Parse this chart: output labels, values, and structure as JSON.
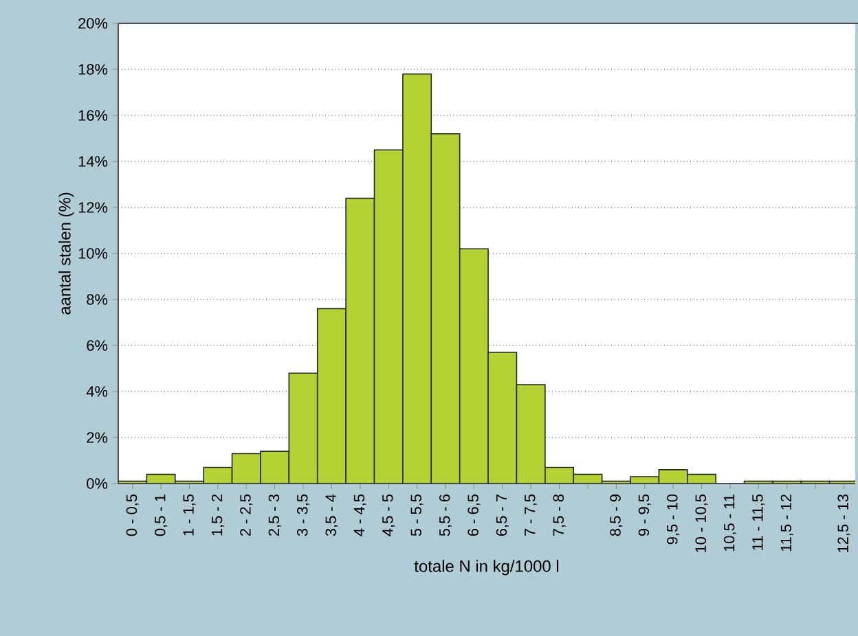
{
  "chart_data": {
    "type": "bar",
    "xlabel": "totale N in kg/1000 l",
    "ylabel": "aantal stalen (%)",
    "categories": [
      "0 - 0,5",
      "0,5 - 1",
      "1 - 1,5",
      "1,5 - 2",
      "2 - 2,5",
      "2,5 - 3",
      "3 - 3,5",
      "3,5 - 4",
      "4 - 4,5",
      "4,5 - 5",
      "5 - 5,5",
      "5,5 - 6",
      "6 - 6,5",
      "6,5 - 7",
      "7 - 7,5",
      "7,5 - 8",
      null,
      "8,5 - 9",
      "9 - 9,5",
      "9,5 - 10",
      "10 - 10,5",
      "10,5 - 11",
      "11 - 11,5",
      "11,5 - 12",
      null,
      "12,5 - 13"
    ],
    "values": [
      0.1,
      0.4,
      0.1,
      0.7,
      1.3,
      1.4,
      4.8,
      7.6,
      12.4,
      14.5,
      17.8,
      15.2,
      10.2,
      5.7,
      4.3,
      0.7,
      0.4,
      0.1,
      0.3,
      0.6,
      0.4,
      null,
      0.1,
      0.1,
      0.1,
      0.1
    ],
    "color": "#b3d334",
    "ylim": [
      0,
      20
    ],
    "yticks": [
      {
        "value": 0,
        "label": "0%"
      },
      {
        "value": 2,
        "label": "2%"
      },
      {
        "value": 4,
        "label": "4%"
      },
      {
        "value": 6,
        "label": "6%"
      },
      {
        "value": 8,
        "label": "8%"
      },
      {
        "value": 10,
        "label": "10%"
      },
      {
        "value": 12,
        "label": "12%"
      },
      {
        "value": 14,
        "label": "14%"
      },
      {
        "value": 16,
        "label": "16%"
      },
      {
        "value": 18,
        "label": "18%"
      },
      {
        "value": 20,
        "label": "20%"
      }
    ],
    "grid": "y"
  }
}
